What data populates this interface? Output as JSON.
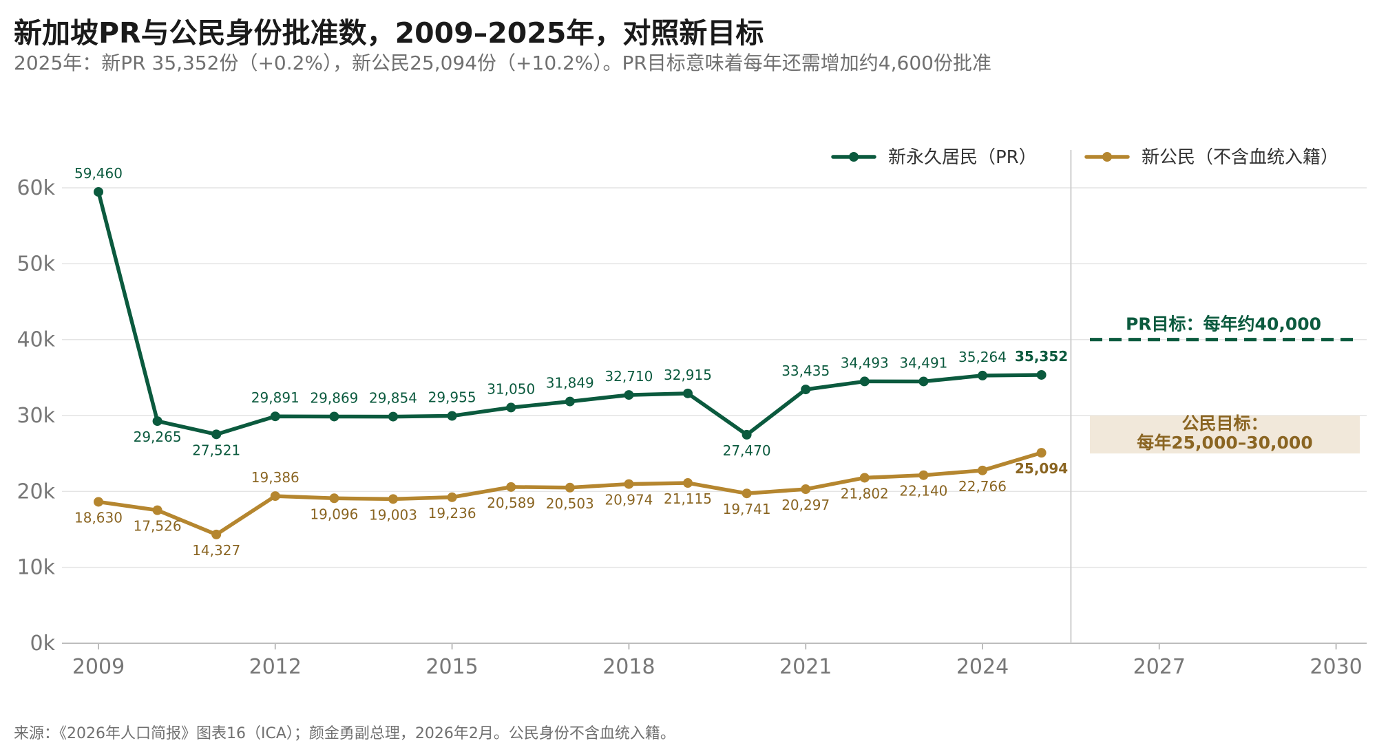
{
  "title": "新加坡PR与公民身份批准数，2009–2025年，对照新目标",
  "subtitle": "2025年：新PR 35,352份（+0.2%），新公民25,094份（+10.2%）。PR目标意味着每年还需增加约4,600份批准",
  "source": "来源：《2026年人口简报》图表16（ICA）；颜金勇副总理，2026年2月。公民身份不含血统入籍。",
  "colors": {
    "pr": "#0b5a3e",
    "citizen": "#b5862f",
    "band": "#f1e8da",
    "grid": "#e4e4e4",
    "axis": "#bdbdbd"
  },
  "chart_data": {
    "type": "line",
    "x": [
      2009,
      2010,
      2011,
      2012,
      2013,
      2014,
      2015,
      2016,
      2017,
      2018,
      2019,
      2020,
      2021,
      2022,
      2023,
      2024,
      2025
    ],
    "x_ticks": [
      2009,
      2012,
      2015,
      2018,
      2021,
      2024,
      2027,
      2030
    ],
    "xlim": [
      2009,
      2030
    ],
    "ylim": [
      0,
      60000
    ],
    "y_ticks": [
      {
        "value": 0,
        "label": "0k"
      },
      {
        "value": 10000,
        "label": "10k"
      },
      {
        "value": 20000,
        "label": "20k"
      },
      {
        "value": 30000,
        "label": "30k"
      },
      {
        "value": 40000,
        "label": "40k"
      },
      {
        "value": 50000,
        "label": "50k"
      },
      {
        "value": 60000,
        "label": "60k"
      }
    ],
    "grid": "horizontal",
    "legend_position": "top-right",
    "series": [
      {
        "name": "新永久居民（PR）",
        "color": "#0b5a3e",
        "values": [
          59460,
          29265,
          27521,
          29891,
          29869,
          29854,
          29955,
          31050,
          31849,
          32710,
          32915,
          27470,
          33435,
          34493,
          34491,
          35264,
          35352
        ],
        "labels": [
          "59,460",
          "29,265",
          "27,521",
          "29,891",
          "29,869",
          "29,854",
          "29,955",
          "31,050",
          "31,849",
          "32,710",
          "32,915",
          "27,470",
          "33,435",
          "34,493",
          "34,491",
          "35,264",
          "35,352"
        ]
      },
      {
        "name": "新公民（不含血统入籍）",
        "color": "#b5862f",
        "values": [
          18630,
          17526,
          14327,
          19386,
          19096,
          19003,
          19236,
          20589,
          20503,
          20974,
          21115,
          19741,
          20297,
          21802,
          22140,
          22766,
          25094
        ],
        "labels": [
          "18,630",
          "17,526",
          "14,327",
          "19,386",
          "19,096",
          "19,003",
          "19,236",
          "20,589",
          "20,503",
          "20,974",
          "21,115",
          "19,741",
          "20,297",
          "21,802",
          "22,140",
          "22,766",
          "25,094"
        ]
      }
    ],
    "targets": {
      "pr": {
        "label": "PR目标：每年约40,000",
        "value": 40000
      },
      "citizen": {
        "label_line1": "公民目标：",
        "label_line2": "每年25,000–30,000",
        "range": [
          25000,
          30000
        ]
      }
    }
  }
}
